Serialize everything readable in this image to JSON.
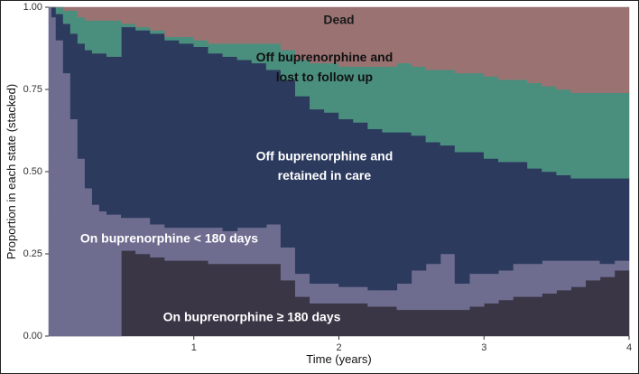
{
  "chart_data": {
    "type": "area",
    "stacked": true,
    "xlabel": "Time (years)",
    "ylabel": "Proportion in each state (stacked)",
    "xlim": [
      0,
      4
    ],
    "ylim": [
      0,
      1
    ],
    "x_ticks": [
      {
        "value": 1,
        "label": "1"
      },
      {
        "value": 2,
        "label": "2"
      },
      {
        "value": 3,
        "label": "3"
      },
      {
        "value": 4,
        "label": "4"
      }
    ],
    "y_ticks": [
      {
        "value": 0.0,
        "label": "0.00"
      },
      {
        "value": 0.25,
        "label": "0.25"
      },
      {
        "value": 0.5,
        "label": "0.50"
      },
      {
        "value": 0.75,
        "label": "0.75"
      },
      {
        "value": 1.0,
        "label": "1.00"
      }
    ],
    "x": [
      0,
      0.02,
      0.05,
      0.1,
      0.15,
      0.2,
      0.25,
      0.3,
      0.35,
      0.4,
      0.5,
      0.6,
      0.7,
      0.8,
      0.9,
      1.0,
      1.1,
      1.2,
      1.3,
      1.4,
      1.5,
      1.6,
      1.7,
      1.8,
      1.9,
      2.0,
      2.1,
      2.2,
      2.3,
      2.4,
      2.5,
      2.6,
      2.7,
      2.8,
      2.9,
      3.0,
      3.1,
      3.2,
      3.3,
      3.4,
      3.5,
      3.6,
      3.7,
      3.8,
      3.9,
      4.0
    ],
    "series": [
      {
        "name": "On buprenorphine ≥ 180 days",
        "color": "#3a3646",
        "values": [
          0,
          0,
          0,
          0,
          0,
          0,
          0,
          0,
          0,
          0,
          0.26,
          0.25,
          0.24,
          0.23,
          0.23,
          0.23,
          0.22,
          0.22,
          0.22,
          0.22,
          0.22,
          0.17,
          0.12,
          0.1,
          0.1,
          0.1,
          0.1,
          0.09,
          0.09,
          0.08,
          0.08,
          0.08,
          0.08,
          0.08,
          0.09,
          0.1,
          0.11,
          0.12,
          0.12,
          0.13,
          0.14,
          0.15,
          0.17,
          0.18,
          0.2,
          0.2
        ]
      },
      {
        "name": "On buprenorphine < 180 days",
        "color": "#6e6d90",
        "values": [
          1.0,
          0.97,
          0.9,
          0.8,
          0.66,
          0.54,
          0.45,
          0.4,
          0.38,
          0.37,
          0.1,
          0.11,
          0.1,
          0.1,
          0.1,
          0.1,
          0.11,
          0.1,
          0.11,
          0.11,
          0.12,
          0.1,
          0.07,
          0.06,
          0.06,
          0.05,
          0.05,
          0.05,
          0.05,
          0.08,
          0.12,
          0.14,
          0.17,
          0.08,
          0.1,
          0.09,
          0.09,
          0.1,
          0.1,
          0.1,
          0.09,
          0.08,
          0.06,
          0.04,
          0.03,
          0.03
        ]
      },
      {
        "name": "Off buprenorphine and retained in care",
        "color": "#2c3a5e",
        "values": [
          0,
          0.03,
          0.08,
          0.15,
          0.26,
          0.35,
          0.42,
          0.46,
          0.48,
          0.48,
          0.58,
          0.57,
          0.58,
          0.57,
          0.56,
          0.55,
          0.53,
          0.53,
          0.51,
          0.5,
          0.47,
          0.51,
          0.54,
          0.53,
          0.52,
          0.51,
          0.5,
          0.49,
          0.48,
          0.46,
          0.41,
          0.37,
          0.33,
          0.4,
          0.37,
          0.35,
          0.33,
          0.31,
          0.29,
          0.27,
          0.26,
          0.25,
          0.25,
          0.26,
          0.25,
          0.25
        ]
      },
      {
        "name": "Off buprenorphine and lost to follow up",
        "color": "#4a8f7e",
        "values": [
          0,
          0,
          0.02,
          0.04,
          0.07,
          0.08,
          0.09,
          0.1,
          0.1,
          0.11,
          0.01,
          0.01,
          0.01,
          0.01,
          0.02,
          0.02,
          0.03,
          0.04,
          0.05,
          0.06,
          0.08,
          0.09,
          0.11,
          0.14,
          0.15,
          0.16,
          0.17,
          0.19,
          0.2,
          0.21,
          0.21,
          0.22,
          0.23,
          0.24,
          0.24,
          0.25,
          0.25,
          0.25,
          0.26,
          0.26,
          0.26,
          0.26,
          0.26,
          0.26,
          0.26,
          0.26
        ]
      },
      {
        "name": "Dead",
        "color": "#9a7272",
        "values": [
          0,
          0,
          0,
          0.01,
          0.01,
          0.03,
          0.04,
          0.04,
          0.04,
          0.04,
          0.05,
          0.06,
          0.07,
          0.09,
          0.09,
          0.1,
          0.11,
          0.11,
          0.11,
          0.11,
          0.11,
          0.13,
          0.16,
          0.17,
          0.17,
          0.18,
          0.18,
          0.18,
          0.18,
          0.17,
          0.18,
          0.19,
          0.19,
          0.2,
          0.2,
          0.21,
          0.22,
          0.22,
          0.23,
          0.24,
          0.25,
          0.26,
          0.26,
          0.26,
          0.26,
          0.26
        ]
      }
    ],
    "annotations": [
      {
        "text": "Dead",
        "color": "#1a1a1a",
        "x": 2.0,
        "y": 0.96
      },
      {
        "text": "Off buprenorphine and",
        "color": "#111111",
        "x": 1.9,
        "y": 0.845
      },
      {
        "text": "lost to follow up",
        "color": "#111111",
        "x": 1.9,
        "y": 0.785
      },
      {
        "text": "Off buprenorphine and",
        "color": "#ffffff",
        "x": 1.9,
        "y": 0.545
      },
      {
        "text": "retained in care",
        "color": "#ffffff",
        "x": 1.9,
        "y": 0.485
      },
      {
        "text": "On buprenorphine < 180 days",
        "color": "#ffffff",
        "x": 0.83,
        "y": 0.295
      },
      {
        "text": "On buprenorphine ≥ 180 days",
        "color": "#ffffff",
        "x": 1.4,
        "y": 0.055
      }
    ],
    "grid": false,
    "legend": "none (direct labels)"
  }
}
